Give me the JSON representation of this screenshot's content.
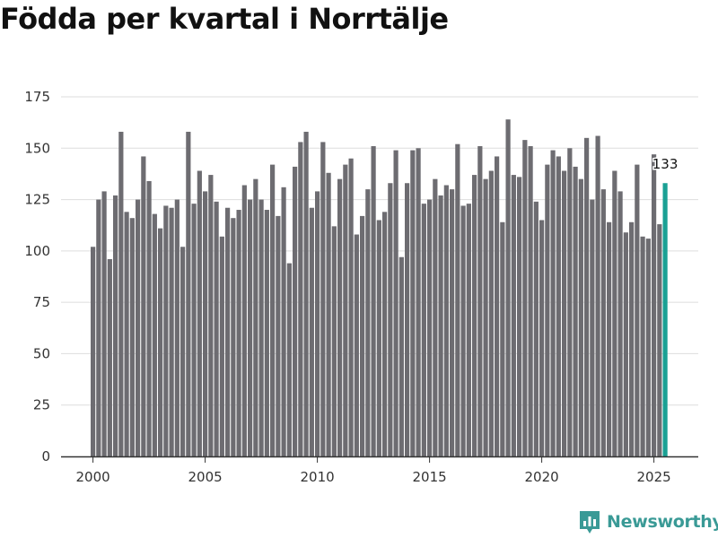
{
  "title": "Födda per kvartal i Norrtälje",
  "brand": {
    "name": "Newsworthy",
    "logo_icon": "newsworthy-logo-icon",
    "color": "#3a9a96"
  },
  "colors": {
    "bar": "#6d6c71",
    "highlight": "#1aa094",
    "grid": "#dddddd",
    "axis": "#333333"
  },
  "chart_data": {
    "type": "bar",
    "title": "Födda per kvartal i Norrtälje",
    "xlabel": "",
    "ylabel": "",
    "ylim": [
      0,
      175
    ],
    "yticks": [
      0,
      25,
      50,
      75,
      100,
      125,
      150,
      175
    ],
    "xticks": [
      {
        "label": "2000",
        "year": 2000
      },
      {
        "label": "2005",
        "year": 2005
      },
      {
        "label": "2010",
        "year": 2010
      },
      {
        "label": "2015",
        "year": 2015
      },
      {
        "label": "2020",
        "year": 2020
      },
      {
        "label": "2025",
        "year": 2025
      }
    ],
    "grid": true,
    "start_year": 2000,
    "start_quarter": 1,
    "values": [
      102,
      125,
      129,
      96,
      127,
      158,
      119,
      116,
      125,
      146,
      134,
      118,
      111,
      122,
      121,
      125,
      102,
      158,
      123,
      139,
      129,
      137,
      124,
      107,
      121,
      116,
      120,
      132,
      125,
      135,
      125,
      120,
      142,
      117,
      131,
      94,
      141,
      153,
      158,
      121,
      129,
      153,
      138,
      112,
      135,
      142,
      145,
      108,
      117,
      130,
      151,
      115,
      119,
      133,
      149,
      97,
      133,
      149,
      150,
      123,
      125,
      135,
      127,
      132,
      130,
      152,
      122,
      123,
      137,
      151,
      135,
      139,
      146,
      114,
      164,
      137,
      136,
      154,
      151,
      124,
      115,
      142,
      149,
      146,
      139,
      150,
      141,
      135,
      155,
      125,
      156,
      130,
      114,
      139,
      129,
      109,
      114,
      142,
      107,
      106,
      147,
      113,
      133
    ],
    "highlight_last": true,
    "last_value_label": "133"
  }
}
